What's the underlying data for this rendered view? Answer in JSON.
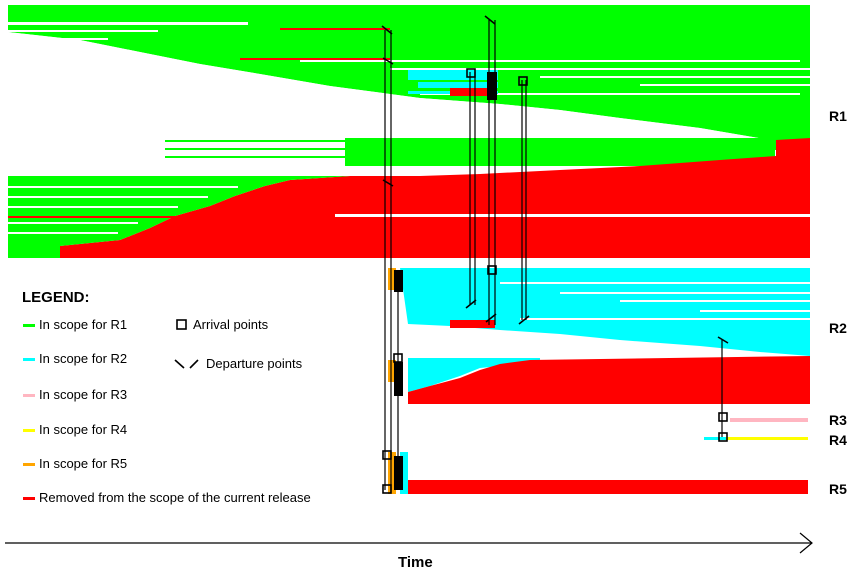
{
  "colors": {
    "r1": "#00ff00",
    "r2": "#00ffff",
    "r3": "#ffb6c1",
    "r4": "#ffff00",
    "r5": "#ffa500",
    "removed": "#ff0000",
    "marker": "#000000"
  },
  "release_labels": [
    "R1",
    "R2",
    "R3",
    "R4",
    "R5"
  ],
  "legend": {
    "title": "LEGEND:",
    "items": [
      {
        "label": "In scope for R1",
        "color": "#00ff00"
      },
      {
        "label": "In scope for R2",
        "color": "#00ffff"
      },
      {
        "label": "In scope for R3",
        "color": "#ffb6c1"
      },
      {
        "label": "In scope for R4",
        "color": "#ffff00"
      },
      {
        "label": "In scope for R5",
        "color": "#ffa500"
      },
      {
        "label": "Removed from the scope of the current release",
        "color": "#ff0000"
      }
    ],
    "arrival_label": "Arrival points",
    "departure_label": "Departure points"
  },
  "axis": {
    "label": "Time"
  }
}
